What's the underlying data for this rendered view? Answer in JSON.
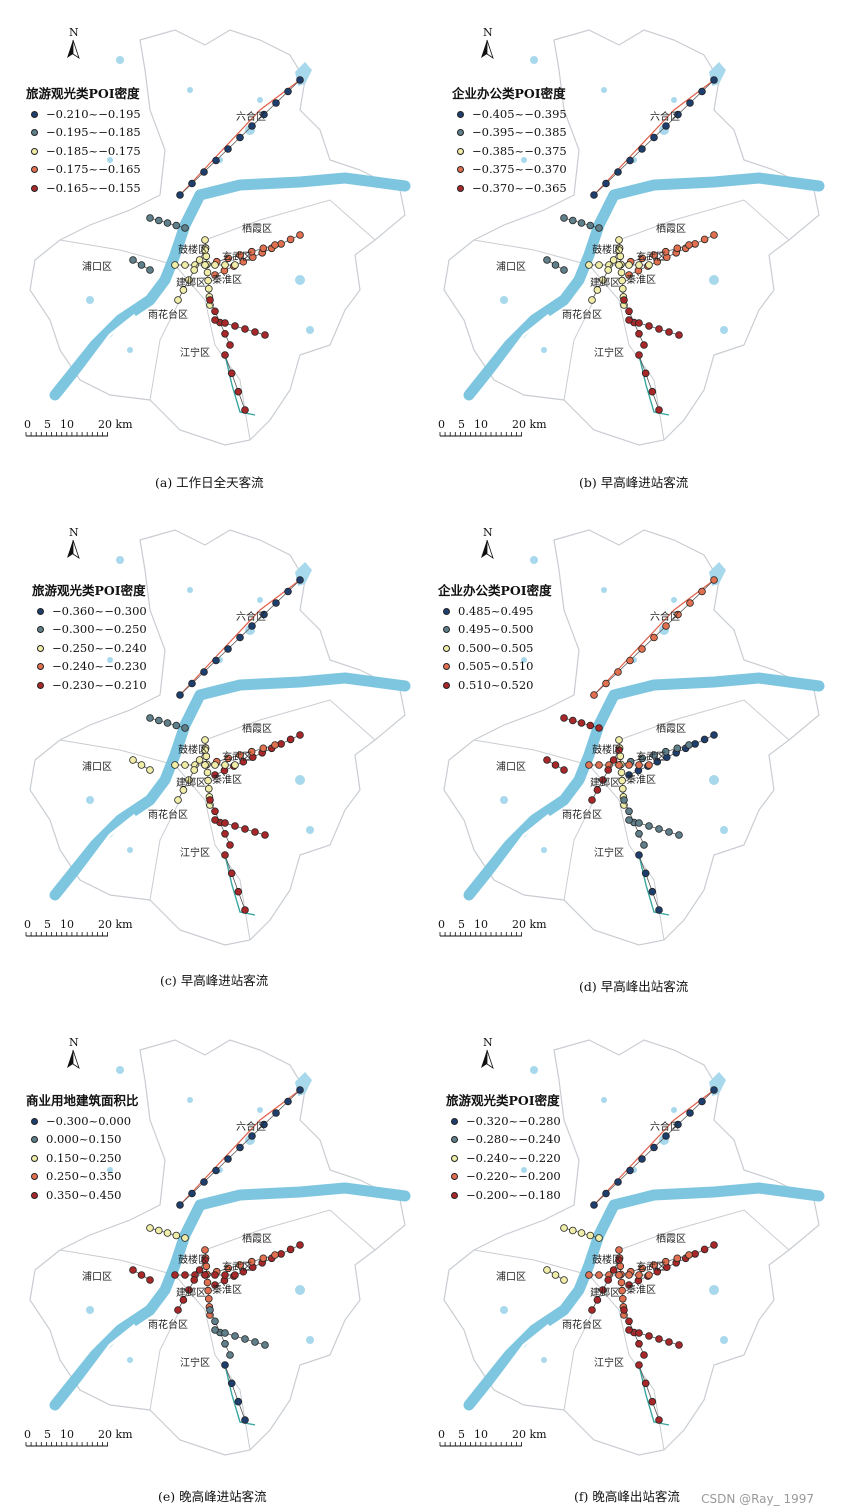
{
  "north_label": "N",
  "scale_labels": [
    "0",
    "5",
    "10",
    "20 km"
  ],
  "district_labels": {
    "luhe": "六合区",
    "qixia": "栖霞区",
    "pukou": "浦口区",
    "gulou": "鼓楼区",
    "xuanwu": "玄武区",
    "qinhuai": "秦淮区",
    "jianye": "建邺区",
    "yuhuatai": "雨花台区",
    "jiangning": "江宁区"
  },
  "class_colors": [
    "#1e3f6e",
    "#5f7f8a",
    "#f0eda8",
    "#e07050",
    "#a8282a"
  ],
  "map_colors": {
    "river": "#7ec6e0",
    "water": "#a8d8ec",
    "boundary": "#c9cdd2",
    "line": "#e0604a",
    "line_south": "#3aa6a0"
  },
  "panels": [
    {
      "legend": {
        "title": "旅游观光类POI密度",
        "items": [
          "−0.210~−0.195",
          "−0.195~−0.185",
          "−0.185~−0.175",
          "−0.175~−0.165",
          "−0.165~−0.155"
        ]
      },
      "caption": "(a) 工作日全天客流"
    },
    {
      "legend": {
        "title": "企业办公类POI密度",
        "items": [
          "−0.405~−0.395",
          "−0.395~−0.385",
          "−0.385~−0.375",
          "−0.375~−0.370",
          "−0.370~−0.365"
        ]
      },
      "caption": "(b) 早高峰进站客流"
    },
    {
      "legend": {
        "title": "旅游观光类POI密度",
        "items": [
          "−0.360~−0.300",
          "−0.300~−0.250",
          "−0.250~−0.240",
          "−0.240~−0.230",
          "−0.230~−0.210"
        ]
      },
      "caption": "(c) 早高峰进站客流"
    },
    {
      "legend": {
        "title": "企业办公类POI密度",
        "items": [
          "0.485~0.495",
          "0.495~0.500",
          "0.500~0.505",
          "0.505~0.510",
          "0.510~0.520"
        ]
      },
      "caption": "(d) 早高峰出站客流"
    },
    {
      "legend": {
        "title": "商业用地建筑面积比",
        "items": [
          "−0.300~0.000",
          "0.000~0.150",
          "0.150~0.250",
          "0.250~0.350",
          "0.350~0.450"
        ]
      },
      "caption": "(e) 晚高峰进站客流"
    },
    {
      "legend": {
        "title": "旅游观光类POI密度",
        "items": [
          "−0.320~−0.280",
          "−0.280~−0.240",
          "−0.240~−0.220",
          "−0.220~−0.200",
          "−0.200~−0.180"
        ]
      },
      "caption": "(f) 晚高峰出站客流"
    }
  ],
  "watermark": "CSDN @Ray_ 1997"
}
